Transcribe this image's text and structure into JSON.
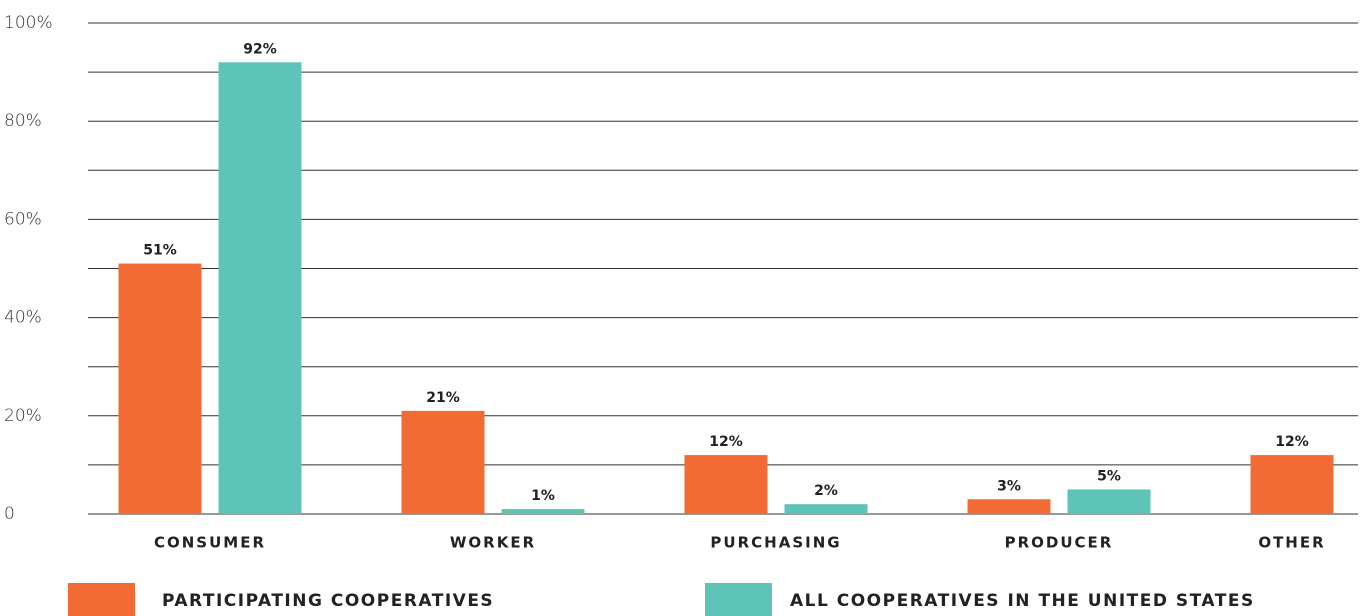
{
  "chart_data": {
    "type": "bar",
    "categories": [
      "CONSUMER",
      "WORKER",
      "PURCHASING",
      "PRODUCER",
      "OTHER"
    ],
    "series": [
      {
        "name": "PARTICIPATING COOPERATIVES",
        "color": "#f26b35",
        "values": [
          51,
          21,
          12,
          3,
          12
        ],
        "value_labels": [
          "51%",
          "21%",
          "12%",
          "3%",
          "12%"
        ]
      },
      {
        "name": "ALL COOPERATIVES IN THE UNITED STATES",
        "color": "#5fc4b8",
        "values": [
          92,
          1,
          2,
          5,
          null
        ],
        "value_labels": [
          "92%",
          "1%",
          "2%",
          "5%",
          null
        ]
      }
    ],
    "ylim": [
      0,
      100
    ],
    "yticks": [
      0,
      {
        "value": 20,
        "label": "20%"
      },
      {
        "value": 40,
        "label": "40%"
      },
      {
        "value": 60,
        "label": "60%"
      },
      {
        "value": 80,
        "label": "80%"
      },
      {
        "value": 100,
        "label": "100%"
      }
    ],
    "minor_yticks": [
      10,
      30,
      50,
      70,
      90
    ],
    "grid": true
  }
}
